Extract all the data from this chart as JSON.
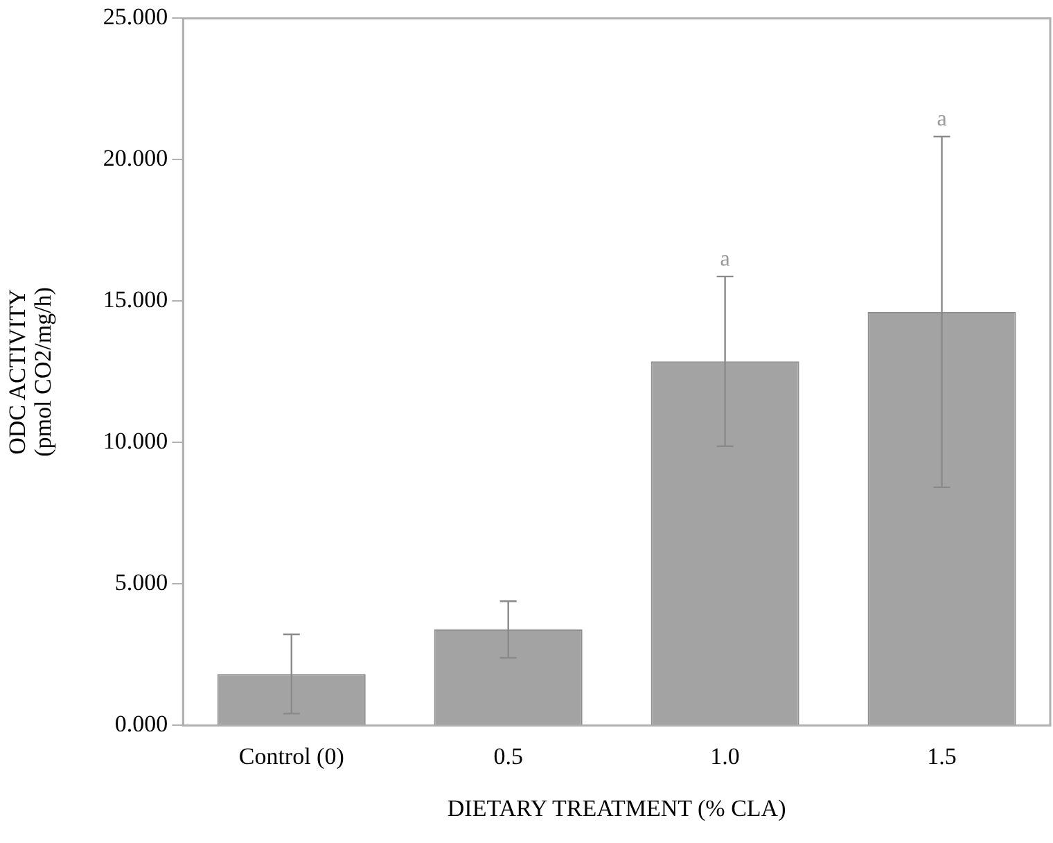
{
  "chart_data": {
    "type": "bar",
    "categories": [
      "Control (0)",
      "0.5",
      "1.0",
      "1.5"
    ],
    "values": [
      1.82,
      3.39,
      12.87,
      14.62
    ],
    "errors": [
      1.4,
      1.0,
      3.0,
      6.2
    ],
    "color": "#a3a3a3",
    "xlabel": "DIETARY TREATMENT (% CLA)",
    "ylabel": "ODC ACTIVITY\n(pmol CO2/mg/h)",
    "ylim": [
      0,
      25
    ],
    "yticks": [
      {
        "value": 0,
        "label": "0.000"
      },
      {
        "value": 5,
        "label": "5.000"
      },
      {
        "value": 10,
        "label": "10.000"
      },
      {
        "value": 15,
        "label": "15.000"
      },
      {
        "value": 20,
        "label": "20.000"
      },
      {
        "value": 25,
        "label": "25.000"
      }
    ],
    "annotations": [
      {
        "text": "a",
        "x": "1.0",
        "y": 15.87
      },
      {
        "text": "a",
        "x": "1.5",
        "y": 20.82
      }
    ],
    "grid": false,
    "legend": false
  }
}
